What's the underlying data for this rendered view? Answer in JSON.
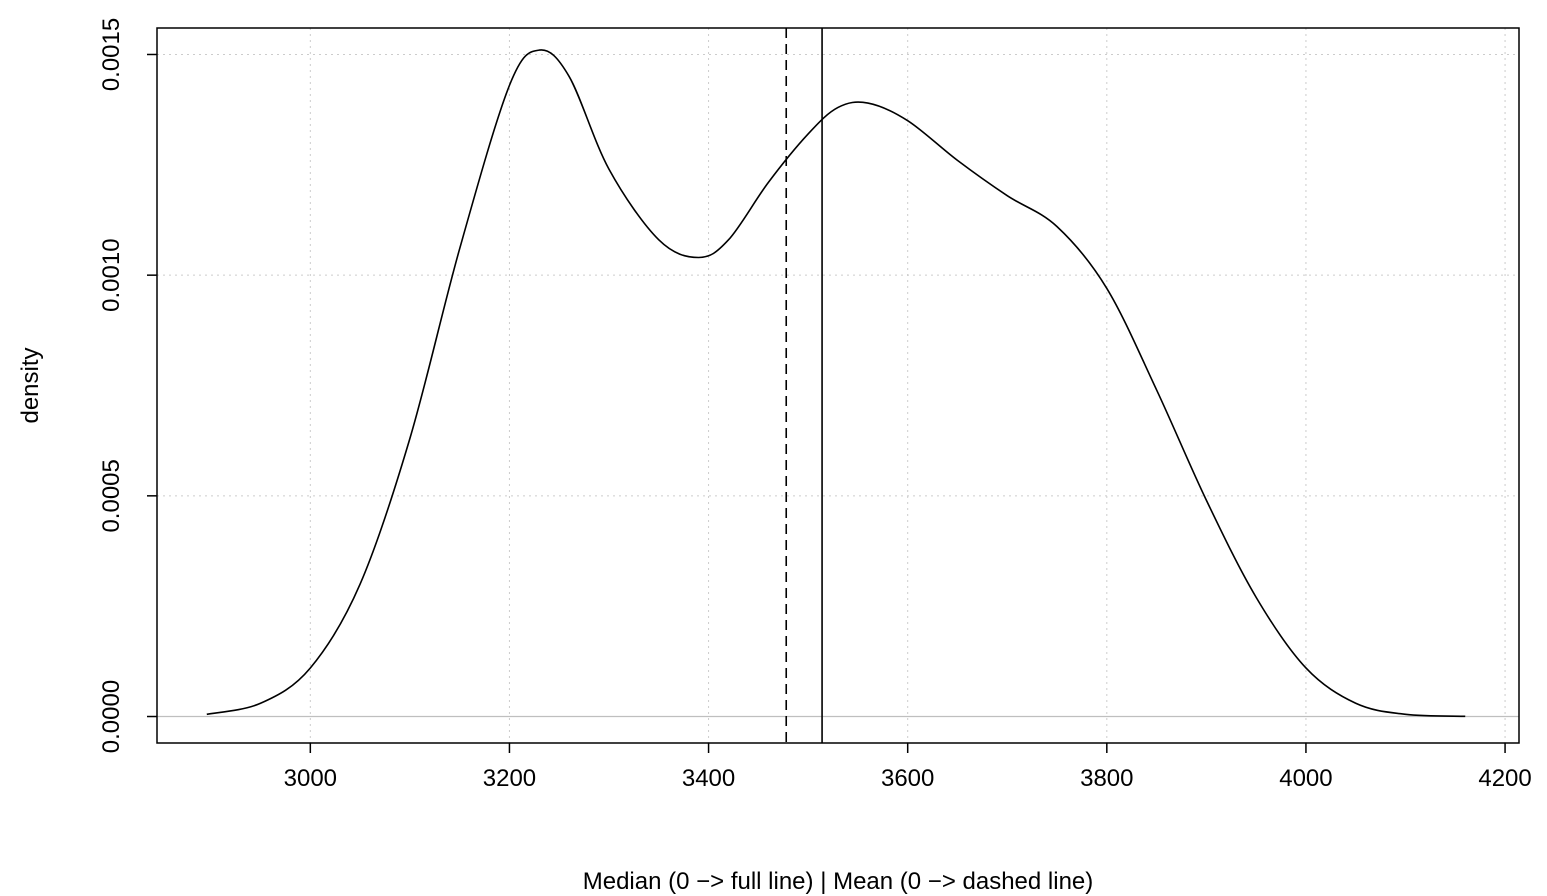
{
  "chart_data": {
    "type": "line",
    "title": "",
    "xlabel": "Median (0 −> full line) | Mean (0 −> dashed line)",
    "ylabel": "density",
    "xlim": [
      2846,
      4214
    ],
    "ylim": [
      -6e-05,
      0.00156
    ],
    "x_ticks": [
      3000,
      3200,
      3400,
      3600,
      3800,
      4000,
      4200
    ],
    "x_tick_labels": [
      "3000",
      "3200",
      "3400",
      "3600",
      "3800",
      "4000",
      "4200"
    ],
    "y_ticks": [
      0.0,
      0.0005,
      0.001,
      0.0015
    ],
    "y_tick_labels": [
      "0.0000",
      "0.0005",
      "0.0010",
      "0.0015"
    ],
    "grid": true,
    "grid_color": "#cccccc",
    "zero_line_color": "#bfbfbf",
    "series": [
      {
        "style": "solid",
        "color": "#000000",
        "x": [
          2896,
          2950,
          3000,
          3050,
          3100,
          3150,
          3200,
          3230,
          3260,
          3300,
          3350,
          3390,
          3420,
          3460,
          3500,
          3530,
          3560,
          3600,
          3650,
          3700,
          3750,
          3800,
          3850,
          3900,
          3950,
          4000,
          4050,
          4100,
          4160
        ],
        "y": [
          5e-06,
          3e-05,
          0.00011,
          0.0003,
          0.00063,
          0.00106,
          0.00143,
          0.00151,
          0.00145,
          0.00124,
          0.00108,
          0.00104,
          0.00108,
          0.00121,
          0.00132,
          0.00138,
          0.00139,
          0.00135,
          0.00126,
          0.00118,
          0.00111,
          0.00097,
          0.00074,
          0.00049,
          0.00027,
          0.00011,
          3e-05,
          5e-06,
          5e-07
        ]
      }
    ],
    "vlines": [
      {
        "x": 3478,
        "style": "dashed",
        "color": "#000000"
      },
      {
        "x": 3514,
        "style": "solid",
        "color": "#000000"
      }
    ]
  }
}
